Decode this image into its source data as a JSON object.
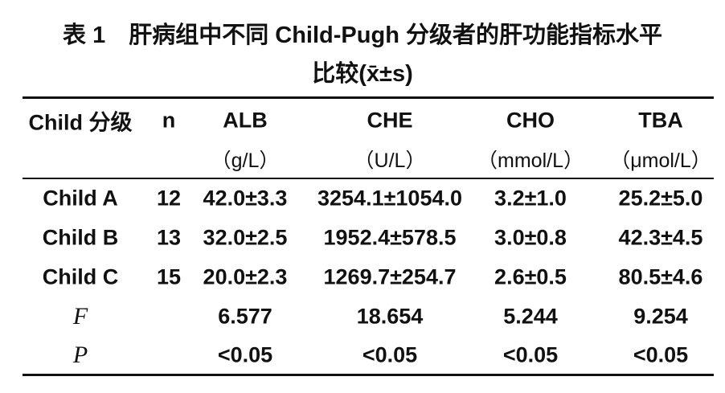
{
  "title": {
    "line1": "表 1　肝病组中不同 Child-Pugh 分级者的肝功能指标水平",
    "line2": "比较(x̄±s)"
  },
  "table": {
    "columns": [
      {
        "name": "Child 分级"
      },
      {
        "name": "n"
      },
      {
        "name": "ALB",
        "unit": "（g/L）"
      },
      {
        "name": "CHE",
        "unit": "（U/L）"
      },
      {
        "name": "CHO",
        "unit": "（mmol/L）"
      },
      {
        "name": "TBA",
        "unit": "（μmol/L）"
      }
    ],
    "rows": [
      {
        "label": "Child A",
        "n": "12",
        "values": [
          "42.0±3.3",
          "3254.1±1054.0",
          "3.2±1.0",
          "25.2±5.0"
        ]
      },
      {
        "label": "Child B",
        "n": "13",
        "values": [
          "32.0±2.5",
          "1952.4±578.5",
          "3.0±0.8",
          "42.3±4.5"
        ]
      },
      {
        "label": "Child C",
        "n": "15",
        "values": [
          "20.0±2.3",
          "1269.7±254.7",
          "2.6±0.5",
          "80.5±4.6"
        ]
      }
    ],
    "stats": [
      {
        "label": "F",
        "values": [
          "6.577",
          "18.654",
          "5.244",
          "9.254"
        ]
      },
      {
        "label": "P",
        "values": [
          "<0.05",
          "<0.05",
          "<0.05",
          "<0.05"
        ]
      }
    ]
  }
}
